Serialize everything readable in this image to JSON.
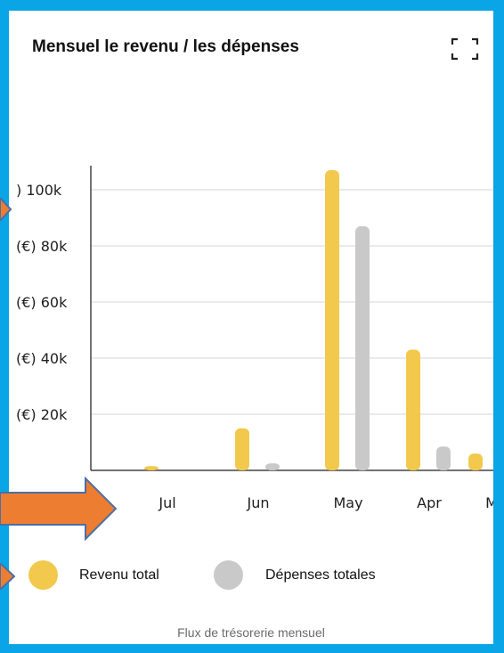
{
  "header": {
    "title": "Mensuel le revenu / les dépenses",
    "expand_icon": "fullscreen-icon"
  },
  "chart_data": {
    "type": "bar",
    "categories": [
      "Jul",
      "Jun",
      "May",
      "Apr",
      "M"
    ],
    "ytick_labels": [
      ")  100k",
      "(€) 80k",
      "(€) 60k",
      "(€) 40k",
      "(€) 20k"
    ],
    "ytick_values": [
      100000,
      80000,
      60000,
      40000,
      20000
    ],
    "ylim": [
      0,
      110000
    ],
    "grid": true,
    "series": [
      {
        "name": "Revenu total",
        "color": "#f2c94c",
        "values": [
          1500,
          15000,
          107000,
          43000,
          6000
        ]
      },
      {
        "name": "Dépenses totales",
        "color": "#c9c9c9",
        "values": [
          0,
          2500,
          87000,
          8500,
          0
        ]
      }
    ]
  },
  "legend": {
    "items": [
      {
        "label": "Revenu total",
        "color": "#f2c94c"
      },
      {
        "label": "Dépenses totales",
        "color": "#c9c9c9"
      }
    ]
  },
  "footer": {
    "caption": "Flux de trésorerie mensuel"
  },
  "annotations": {
    "arrow_color": "#ed7d31",
    "arrow_border": "#4a6fa5"
  }
}
